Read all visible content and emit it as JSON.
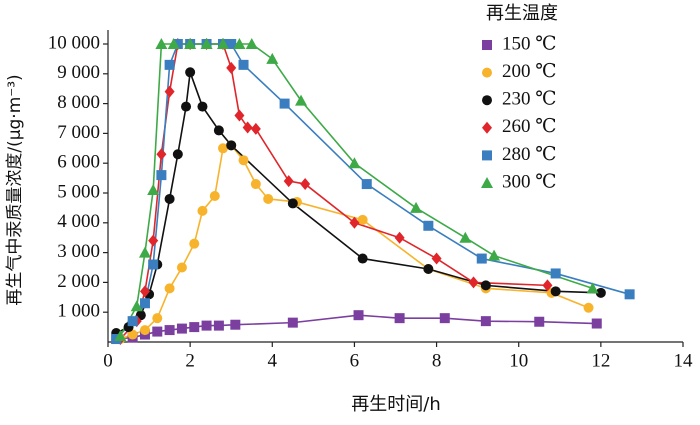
{
  "chart_data": {
    "type": "line",
    "xlabel": "再生时间/h",
    "ylabel": "再生气中汞质量浓度/(μg·m⁻³)",
    "legend_title": "再生温度",
    "legend": "upper right",
    "xlim": [
      0,
      14
    ],
    "xticks": [
      0,
      2,
      4,
      6,
      8,
      10,
      12,
      14
    ],
    "ylim": [
      0,
      10000
    ],
    "yticks": [
      {
        "value": 1000,
        "label": "1 000"
      },
      {
        "value": 2000,
        "label": "2 000"
      },
      {
        "value": 3000,
        "label": "3 000"
      },
      {
        "value": 4000,
        "label": "4 000"
      },
      {
        "value": 5000,
        "label": "5 000"
      },
      {
        "value": 6000,
        "label": "6 000"
      },
      {
        "value": 7000,
        "label": "7 000"
      },
      {
        "value": 8000,
        "label": "8 000"
      },
      {
        "value": 9000,
        "label": "9 000"
      },
      {
        "value": 10000,
        "label": "10 000"
      }
    ],
    "series": [
      {
        "name": "150 ℃",
        "color": "#7b3fa0",
        "marker": "square",
        "x": [
          0.2,
          0.6,
          0.9,
          1.2,
          1.5,
          1.8,
          2.1,
          2.4,
          2.7,
          3.1,
          4.5,
          6.1,
          7.1,
          8.2,
          9.2,
          10.5,
          11.9
        ],
        "values": [
          100,
          150,
          250,
          350,
          400,
          450,
          500,
          550,
          550,
          580,
          650,
          900,
          800,
          800,
          700,
          680,
          620
        ]
      },
      {
        "name": "200 ℃",
        "color": "#f7b32b",
        "marker": "circle",
        "x": [
          0.3,
          0.6,
          0.9,
          1.2,
          1.5,
          1.8,
          2.1,
          2.3,
          2.6,
          2.8,
          3.0,
          3.3,
          3.6,
          3.9,
          4.6,
          6.2,
          7.8,
          9.2,
          10.8,
          11.7
        ],
        "values": [
          100,
          250,
          400,
          800,
          1800,
          2500,
          3300,
          4400,
          4900,
          6500,
          6600,
          6100,
          5300,
          4800,
          4700,
          4100,
          2450,
          1800,
          1650,
          1150
        ]
      },
      {
        "name": "230 ℃",
        "color": "#111111",
        "marker": "circle",
        "x": [
          0.2,
          0.5,
          0.8,
          1.0,
          1.2,
          1.5,
          1.7,
          1.9,
          2.0,
          2.3,
          2.7,
          3.0,
          4.5,
          6.2,
          7.8,
          9.2,
          10.9,
          12.0
        ],
        "values": [
          300,
          500,
          900,
          1600,
          2600,
          4800,
          6300,
          7900,
          9050,
          7900,
          7100,
          6600,
          4650,
          2800,
          2450,
          1900,
          1700,
          1650
        ]
      },
      {
        "name": "260 ℃",
        "color": "#e0262a",
        "marker": "diamond",
        "x": [
          0.3,
          0.7,
          0.9,
          1.1,
          1.3,
          1.5,
          1.7,
          2.0,
          2.4,
          2.8,
          3.0,
          3.2,
          3.4,
          3.6,
          4.4,
          4.8,
          6.0,
          7.1,
          8.0,
          8.9,
          10.7
        ],
        "values": [
          100,
          700,
          1700,
          3400,
          6300,
          8400,
          10000,
          10000,
          10000,
          10000,
          9200,
          7600,
          7200,
          7150,
          5400,
          5300,
          4000,
          3500,
          2800,
          2000,
          1900
        ]
      },
      {
        "name": "280 ℃",
        "color": "#3a7ebf",
        "marker": "square",
        "x": [
          0.2,
          0.6,
          0.9,
          1.1,
          1.3,
          1.5,
          1.7,
          2.0,
          2.4,
          2.8,
          3.0,
          3.3,
          4.3,
          6.3,
          7.8,
          9.1,
          10.9,
          12.7
        ],
        "values": [
          100,
          700,
          1300,
          2600,
          5600,
          9300,
          10000,
          10000,
          10000,
          10000,
          10000,
          9300,
          8000,
          5300,
          3900,
          2800,
          2300,
          1600
        ]
      },
      {
        "name": "300 ℃",
        "color": "#3daa47",
        "marker": "triangle",
        "x": [
          0.3,
          0.7,
          0.9,
          1.1,
          1.3,
          1.6,
          2.0,
          2.4,
          2.8,
          3.2,
          3.5,
          4.0,
          4.7,
          6.0,
          7.5,
          8.7,
          9.4,
          11.8
        ],
        "values": [
          200,
          1200,
          3000,
          5100,
          10000,
          10000,
          10000,
          10000,
          10000,
          10000,
          10000,
          9500,
          8100,
          6000,
          4500,
          3500,
          2900,
          1800
        ]
      }
    ]
  }
}
